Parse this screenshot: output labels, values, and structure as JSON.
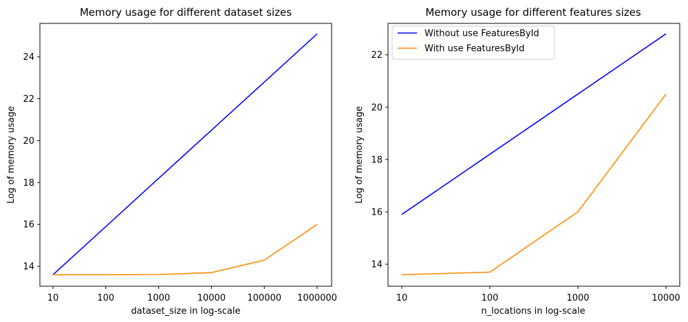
{
  "chart_data": [
    {
      "type": "line",
      "title": "Memory usage for different dataset sizes",
      "xlabel": "dataset_size in log-scale",
      "ylabel": "Log of memory usage",
      "x": [
        10,
        100,
        1000,
        10000,
        100000,
        1000000
      ],
      "x_tick_labels": [
        "10",
        "100",
        "1000",
        "10000",
        "100000",
        "1000000"
      ],
      "y_ticks": [
        14,
        16,
        18,
        20,
        22,
        24
      ],
      "xscale": "log",
      "ylim": [
        13.05,
        25.6
      ],
      "grid": false,
      "legend": "none",
      "series": [
        {
          "color": "#0000ff",
          "values": [
            13.6,
            15.9,
            18.2,
            20.5,
            22.8,
            25.1
          ]
        },
        {
          "color": "#ff8c00",
          "values": [
            13.6,
            13.6,
            13.61,
            13.7,
            14.3,
            16.0
          ]
        }
      ]
    },
    {
      "type": "line",
      "title": "Memory usage for different features sizes",
      "xlabel": "n_locations in log-scale",
      "ylabel": "Log of memory usage",
      "x": [
        10,
        100,
        1000,
        10000
      ],
      "x_tick_labels": [
        "10",
        "100",
        "1000",
        "10000"
      ],
      "y_ticks": [
        14,
        16,
        18,
        20,
        22
      ],
      "xscale": "log",
      "ylim": [
        13.16,
        23.2
      ],
      "grid": false,
      "legend": "upper-left",
      "series": [
        {
          "name": "Without use FeaturesById",
          "color": "#0000ff",
          "values": [
            15.9,
            18.2,
            20.5,
            22.8
          ]
        },
        {
          "name": "With use FeaturesById",
          "color": "#ff8c00",
          "values": [
            13.6,
            13.7,
            16.0,
            20.5
          ]
        }
      ]
    }
  ]
}
